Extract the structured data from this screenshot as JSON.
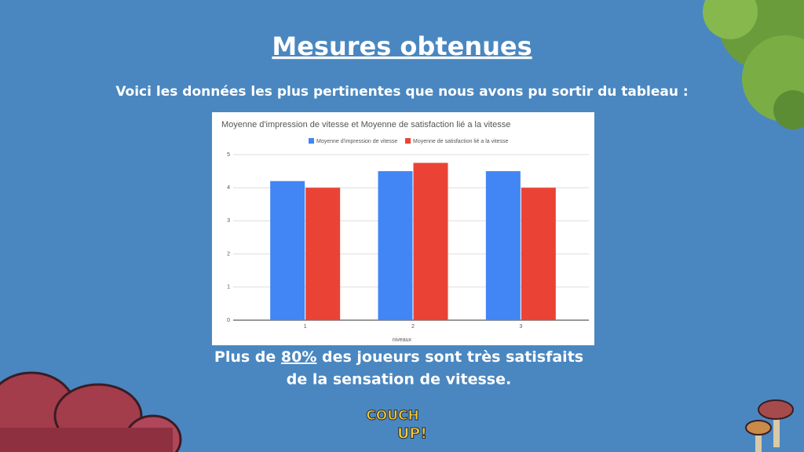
{
  "slide": {
    "title": "Mesures obtenues",
    "subtitle": "Voici les données les plus pertinentes que nous avons pu sortir du tableau :",
    "conclusion": {
      "line1": [
        "Plus de ",
        "80%",
        " des joueurs sont très satisfaits"
      ],
      "line2": "de la sensation de vitesse."
    },
    "logo": [
      "COUCH",
      "UP!"
    ]
  },
  "chart_data": {
    "type": "bar",
    "title": "Moyenne d'impression de vitesse et Moyenne de satisfaction lié a la vitesse",
    "x_label": "niveaux",
    "categories": [
      "1",
      "2",
      "3"
    ],
    "series": [
      {
        "name": "Moyenne d'impression de vitesse",
        "color": "#4285f4",
        "values": [
          4.2,
          4.5,
          4.5
        ]
      },
      {
        "name": "Moyenne de satisfaction lié a la vitesse",
        "color": "#ea4335",
        "values": [
          4.0,
          4.75,
          4.0
        ]
      }
    ],
    "ylim": [
      0,
      5
    ],
    "yticks": [
      0,
      1,
      2,
      3,
      4,
      5
    ],
    "grid": true,
    "legend": "top"
  }
}
